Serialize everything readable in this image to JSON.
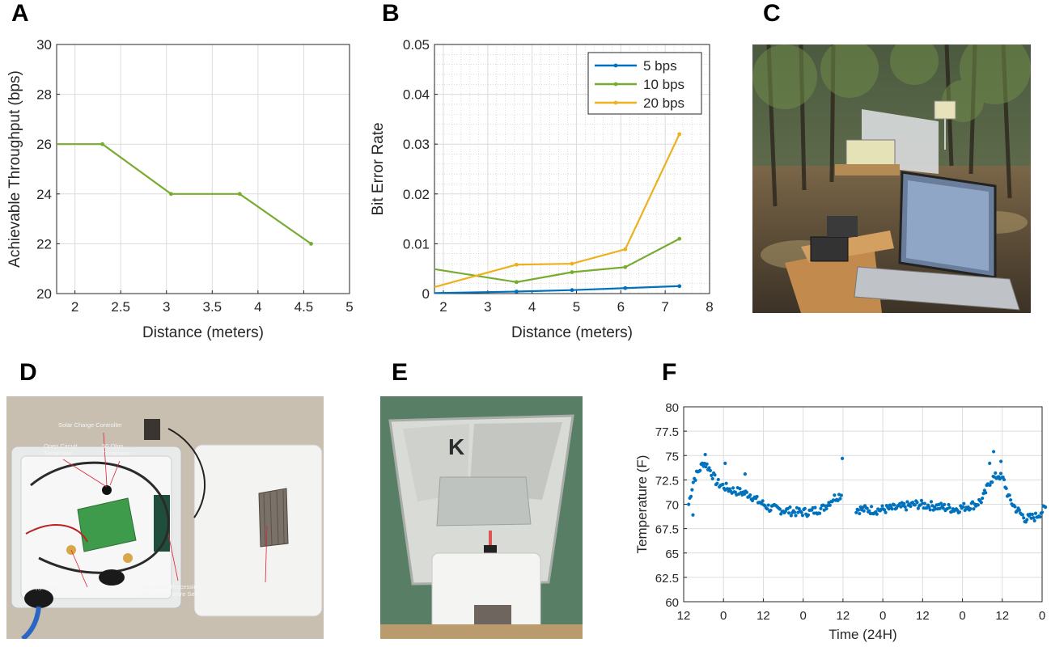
{
  "panels": {
    "A": "A",
    "B": "B",
    "C": "C",
    "D": "D",
    "E": "E",
    "F": "F"
  },
  "photo_labels": {
    "solar_charge_controller": "Solar Charge Controller",
    "open_circuit_terminator": "Open Circuit\nTerminator",
    "ohm_terminator": "50 Ohm\nTerminator",
    "rf_switch": "RF Switch",
    "processing_unit": "Low-power Processing Unit\nwith Temperature Sensor",
    "solar_cell": "Solar Cell"
  },
  "colors": {
    "series_blue": "#0072bd",
    "series_green": "#77ac30",
    "series_orange": "#edb120"
  },
  "chart_data": [
    {
      "id": "A",
      "type": "line",
      "xlabel": "Distance (meters)",
      "ylabel": "Achievable Throughput (bps)",
      "xlim": [
        1.8,
        5
      ],
      "ylim": [
        20,
        30
      ],
      "xticks": [
        2,
        2.5,
        3,
        3.5,
        4,
        4.5,
        5
      ],
      "yticks": [
        20,
        22,
        24,
        26,
        28,
        30
      ],
      "grid": true,
      "series": [
        {
          "color": "#77ac30",
          "x": [
            1.8,
            2.3,
            3.05,
            3.8,
            4.58
          ],
          "y": [
            26,
            26,
            24,
            24,
            22
          ]
        }
      ]
    },
    {
      "id": "B",
      "type": "line",
      "xlabel": "Distance (meters)",
      "ylabel": "Bit Error Rate",
      "xlim": [
        1.8,
        8
      ],
      "ylim": [
        0,
        0.05
      ],
      "xticks": [
        2,
        3,
        4,
        5,
        6,
        7,
        8
      ],
      "yticks": [
        0,
        0.01,
        0.02,
        0.03,
        0.04,
        0.05
      ],
      "grid": true,
      "minor_grid": true,
      "legend_position": "top-right",
      "series": [
        {
          "name": "5 bps",
          "color": "#0072bd",
          "x": [
            1.8,
            3.65,
            4.9,
            6.1,
            7.32
          ],
          "y": [
            0.0001,
            0.0004,
            0.0007,
            0.0011,
            0.0015
          ]
        },
        {
          "name": "10 bps",
          "color": "#77ac30",
          "x": [
            1.8,
            3.65,
            4.9,
            6.1,
            7.32
          ],
          "y": [
            0.0049,
            0.0023,
            0.0043,
            0.0053,
            0.011
          ]
        },
        {
          "name": "20 bps",
          "color": "#edb120",
          "x": [
            1.8,
            3.65,
            4.9,
            6.1,
            7.32
          ],
          "y": [
            0.0013,
            0.0058,
            0.006,
            0.0089,
            0.032
          ]
        }
      ]
    },
    {
      "id": "F",
      "type": "scatter",
      "xlabel": "Time (24H)",
      "ylabel": "Temperature (F)",
      "xlim": [
        0,
        108
      ],
      "ylim": [
        60,
        80
      ],
      "xtick_positions": [
        0,
        12,
        24,
        36,
        48,
        60,
        72,
        84,
        96,
        108
      ],
      "xticks": [
        "12",
        "0",
        "12",
        "0",
        "12",
        "0",
        "12",
        "0",
        "12",
        "0"
      ],
      "yticks": [
        "60",
        "62.5",
        "65",
        "67.5",
        "70",
        "72.5",
        "75",
        "77.5",
        "80"
      ],
      "grid": true,
      "series": [
        {
          "color": "#0072bd",
          "segments": [
            {
              "x0": 1.5,
              "x1": 47.5,
              "n": 135,
              "anchors": [
                [
                  1.5,
                  70
                ],
                [
                  3,
                  72.5
                ],
                [
                  6,
                  74.3
                ],
                [
                  7.5,
                  73.8
                ],
                [
                  10,
                  72.2
                ],
                [
                  14,
                  71.5
                ],
                [
                  20,
                  71
                ],
                [
                  22,
                  70.4
                ],
                [
                  26,
                  69.6
                ],
                [
                  30,
                  69.4
                ],
                [
                  34,
                  69.2
                ],
                [
                  38,
                  69.2
                ],
                [
                  42,
                  69.6
                ],
                [
                  45,
                  70.6
                ],
                [
                  47.5,
                  71
                ]
              ]
            },
            {
              "x0": 52,
              "x1": 109,
              "n": 175,
              "anchors": [
                [
                  52,
                  69.5
                ],
                [
                  58,
                  69.4
                ],
                [
                  64,
                  69.6
                ],
                [
                  70,
                  70
                ],
                [
                  76,
                  69.8
                ],
                [
                  82,
                  69.5
                ],
                [
                  88,
                  70
                ],
                [
                  90,
                  70.5
                ],
                [
                  92.5,
                  72.5
                ],
                [
                  95,
                  73
                ],
                [
                  96.5,
                  72.4
                ],
                [
                  98,
                  70.6
                ],
                [
                  100,
                  69.6
                ],
                [
                  103,
                  68.5
                ],
                [
                  106,
                  68.7
                ],
                [
                  109,
                  69.6
                ]
              ]
            }
          ],
          "outliers": [
            {
              "x": 2.8,
              "y": 68.9
            },
            {
              "x": 6.5,
              "y": 75.1
            },
            {
              "x": 12.5,
              "y": 74.2
            },
            {
              "x": 18.5,
              "y": 73.1
            },
            {
              "x": 47.8,
              "y": 74.7
            },
            {
              "x": 92.2,
              "y": 74.2
            },
            {
              "x": 93.4,
              "y": 75.4
            },
            {
              "x": 95.6,
              "y": 74.4
            }
          ]
        }
      ]
    }
  ]
}
